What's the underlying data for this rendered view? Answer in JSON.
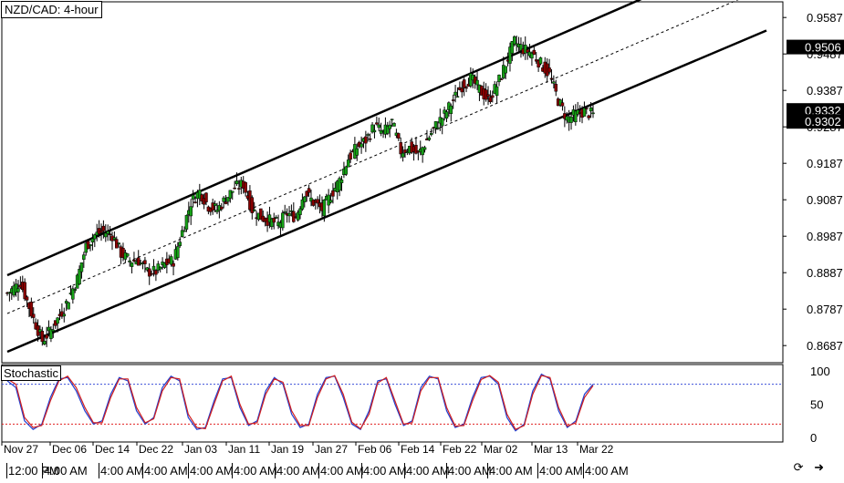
{
  "title": "NZD/CAD: 4-hour",
  "indicator_label": "Stochastic",
  "current_price_labels": [
    "0.9506",
    "0.9332",
    "0.9302"
  ],
  "chart_data": [
    {
      "type": "line",
      "title": "NZD/CAD: 4-hour",
      "y_ticks": [
        "0.9587",
        "0.9487",
        "0.9387",
        "0.9287",
        "0.9187",
        "0.9087",
        "0.8987",
        "0.8887",
        "0.8787",
        "0.8687"
      ],
      "ylim": [
        0.864,
        0.963
      ],
      "x_tick_labels": [
        "Nov 27",
        "Dec 06",
        "Dec 14",
        "Dec 22",
        "Jan 03",
        "Jan 11",
        "Jan 19",
        "Jan 27",
        "Feb 06",
        "Feb 14",
        "Feb 22",
        "Mar 02",
        "Mar 13",
        "Mar 22"
      ],
      "price_path": [
        [
          0,
          0.883
        ],
        [
          3,
          0.886
        ],
        [
          6,
          0.876
        ],
        [
          8,
          0.87
        ],
        [
          10,
          0.873
        ],
        [
          13,
          0.879
        ],
        [
          16,
          0.887
        ],
        [
          18,
          0.896
        ],
        [
          20,
          0.899
        ],
        [
          22,
          0.9
        ],
        [
          24,
          0.899
        ],
        [
          26,
          0.894
        ],
        [
          28,
          0.892
        ],
        [
          30,
          0.892
        ],
        [
          32,
          0.889
        ],
        [
          34,
          0.889
        ],
        [
          36,
          0.891
        ],
        [
          38,
          0.892
        ],
        [
          40,
          0.9
        ],
        [
          42,
          0.908
        ],
        [
          44,
          0.911
        ],
        [
          46,
          0.907
        ],
        [
          48,
          0.906
        ],
        [
          50,
          0.909
        ],
        [
          52,
          0.912
        ],
        [
          54,
          0.913
        ],
        [
          56,
          0.906
        ],
        [
          58,
          0.904
        ],
        [
          60,
          0.903
        ],
        [
          62,
          0.902
        ],
        [
          64,
          0.905
        ],
        [
          66,
          0.904
        ],
        [
          68,
          0.911
        ],
        [
          70,
          0.908
        ],
        [
          72,
          0.906
        ],
        [
          74,
          0.91
        ],
        [
          76,
          0.914
        ],
        [
          78,
          0.92
        ],
        [
          80,
          0.923
        ],
        [
          82,
          0.925
        ],
        [
          84,
          0.929
        ],
        [
          86,
          0.927
        ],
        [
          88,
          0.93
        ],
        [
          90,
          0.922
        ],
        [
          92,
          0.923
        ],
        [
          94,
          0.921
        ],
        [
          96,
          0.925
        ],
        [
          98,
          0.929
        ],
        [
          100,
          0.932
        ],
        [
          102,
          0.936
        ],
        [
          104,
          0.94
        ],
        [
          106,
          0.942
        ],
        [
          108,
          0.939
        ],
        [
          110,
          0.936
        ],
        [
          112,
          0.94
        ],
        [
          114,
          0.946
        ],
        [
          116,
          0.952
        ],
        [
          118,
          0.95
        ],
        [
          120,
          0.949
        ],
        [
          122,
          0.946
        ],
        [
          124,
          0.943
        ],
        [
          126,
          0.936
        ],
        [
          128,
          0.931
        ],
        [
          130,
          0.932
        ],
        [
          132,
          0.933
        ],
        [
          134,
          0.932
        ]
      ],
      "channel": {
        "upper": [
          [
            0,
            0.888
          ],
          [
            134,
            0.958
          ]
        ],
        "lower": [
          [
            0,
            0.867
          ],
          [
            134,
            0.935
          ]
        ],
        "middle": [
          [
            0,
            0.8775
          ],
          [
            134,
            0.9465
          ]
        ]
      }
    },
    {
      "type": "line",
      "title": "Stochastic",
      "y_ticks": [
        "100",
        "50",
        "0"
      ],
      "ylim": [
        0,
        100
      ],
      "levels": [
        80,
        20
      ],
      "series": [
        {
          "color": "#1f3fd1",
          "values": [
            85,
            75,
            25,
            12,
            20,
            60,
            88,
            90,
            70,
            40,
            20,
            25,
            65,
            90,
            85,
            40,
            20,
            30,
            75,
            92,
            85,
            30,
            12,
            15,
            55,
            88,
            90,
            45,
            18,
            25,
            70,
            90,
            80,
            35,
            15,
            20,
            65,
            90,
            92,
            60,
            20,
            12,
            40,
            85,
            88,
            50,
            18,
            25,
            75,
            92,
            88,
            40,
            15,
            20,
            60,
            90,
            92,
            80,
            30,
            10,
            20,
            70,
            95,
            88,
            40,
            15,
            25,
            65,
            80
          ]
        },
        {
          "color": "#d11f1f",
          "values": [
            88,
            80,
            30,
            15,
            18,
            55,
            85,
            92,
            75,
            45,
            22,
            22,
            60,
            88,
            88,
            45,
            22,
            28,
            70,
            90,
            88,
            35,
            15,
            13,
            50,
            85,
            92,
            50,
            20,
            22,
            65,
            88,
            83,
            40,
            18,
            18,
            60,
            88,
            93,
            65,
            23,
            13,
            35,
            82,
            90,
            55,
            20,
            22,
            70,
            90,
            90,
            45,
            17,
            18,
            55,
            87,
            93,
            83,
            35,
            12,
            18,
            65,
            93,
            90,
            45,
            17,
            22,
            60,
            78
          ]
        }
      ]
    }
  ],
  "footer": {
    "labels": [
      "12:00 PM",
      "4:00 AM",
      "4:00 AM",
      "4:00 AM",
      "4:00 AM",
      "4:00 AM",
      "4:00 AM",
      "4:00 AM",
      "4:00 AM",
      "4:00 AM",
      "4:00 AM",
      "4:00 AM",
      "4:00 AM",
      "4:00 AM"
    ]
  },
  "icons": [
    "sync-icon",
    "arrow-right-icon"
  ],
  "colors": {
    "bull_candle": "#16a116",
    "bear_candle": "#8b0000",
    "axis": "#000000",
    "current_price_bg": "#000000",
    "current_price_text": "#ffffff",
    "stoch_level_upper": "#3b4fd9",
    "stoch_level_lower": "#e02020"
  }
}
